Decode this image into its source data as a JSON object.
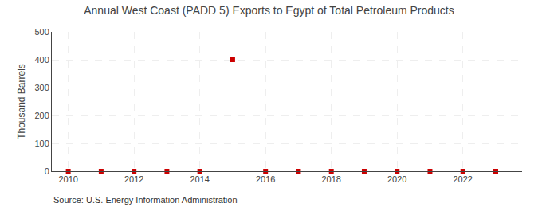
{
  "chart_data": {
    "type": "scatter",
    "title": "Annual West Coast (PADD 5) Exports to Egypt of Total Petroleum Products",
    "ylabel": "Thousand Barrels",
    "source": "Source: U.S. Energy Information Administration",
    "x": [
      2010,
      2011,
      2012,
      2013,
      2014,
      2015,
      2016,
      2017,
      2018,
      2019,
      2020,
      2021,
      2022,
      2023
    ],
    "values": [
      0,
      0,
      0,
      0,
      0,
      400,
      0,
      0,
      0,
      0,
      0,
      0,
      0,
      0
    ],
    "color": "#cc0000",
    "marker": "square",
    "xlim": [
      2009.5,
      2023.8
    ],
    "xticks": [
      2010,
      2012,
      2014,
      2016,
      2018,
      2020,
      2022
    ],
    "ylim": [
      0,
      500
    ],
    "yticks": [
      0,
      100,
      200,
      300,
      400,
      500
    ],
    "grid": true
  }
}
